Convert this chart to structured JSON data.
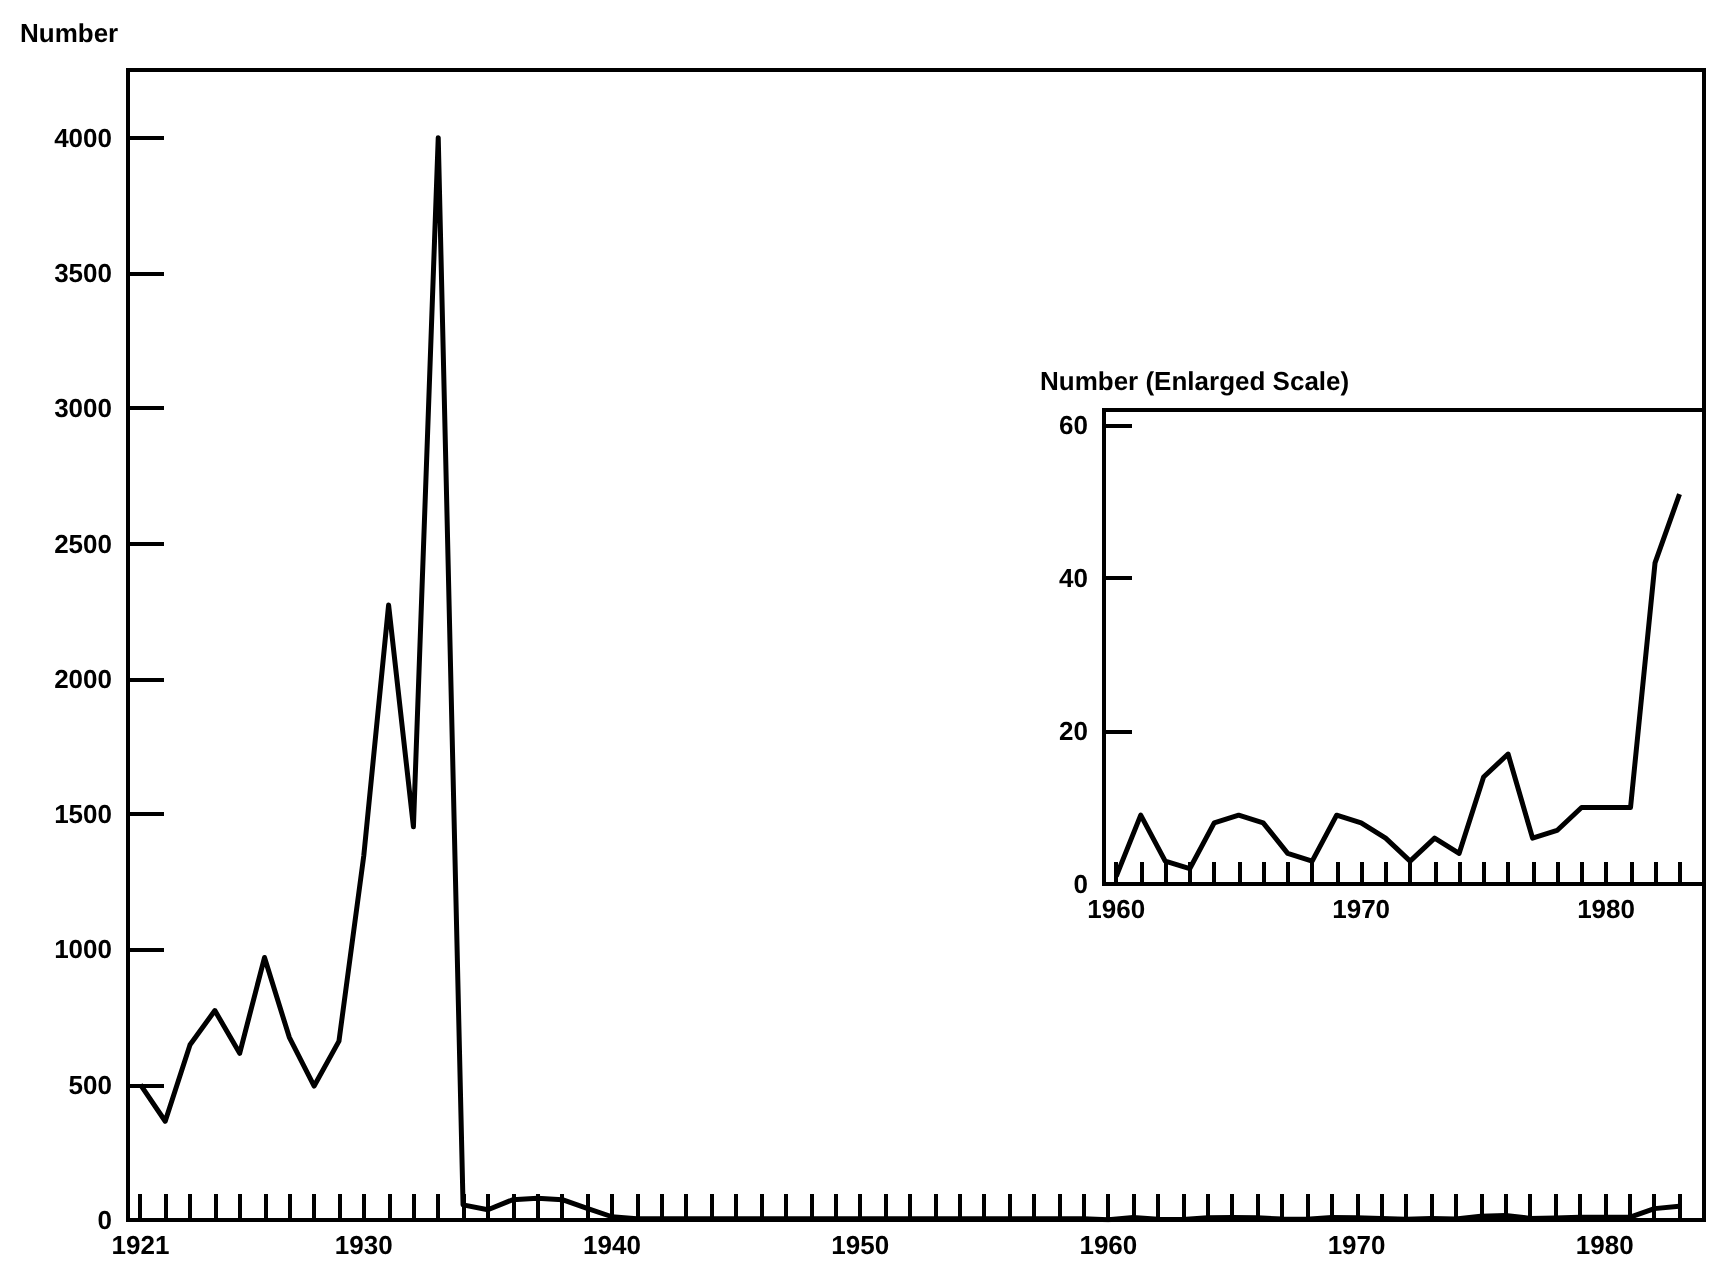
{
  "chart_data": [
    {
      "type": "line",
      "ylabel": "Number",
      "color": "#000000",
      "x": [
        1921,
        1922,
        1923,
        1924,
        1925,
        1926,
        1927,
        1928,
        1929,
        1930,
        1931,
        1932,
        1933,
        1934,
        1935,
        1936,
        1937,
        1938,
        1939,
        1940,
        1941,
        1942,
        1943,
        1944,
        1945,
        1946,
        1947,
        1948,
        1949,
        1950,
        1951,
        1952,
        1953,
        1954,
        1955,
        1956,
        1957,
        1958,
        1959,
        1960,
        1961,
        1962,
        1963,
        1964,
        1965,
        1966,
        1967,
        1968,
        1969,
        1970,
        1971,
        1972,
        1973,
        1974,
        1975,
        1976,
        1977,
        1978,
        1979,
        1980,
        1981,
        1982,
        1983
      ],
      "values": [
        500,
        365,
        648,
        774,
        616,
        970,
        675,
        495,
        661,
        1346,
        2273,
        1453,
        4000,
        56,
        38,
        75,
        80,
        75,
        43,
        12,
        5,
        5,
        5,
        5,
        5,
        5,
        5,
        5,
        5,
        5,
        5,
        5,
        5,
        5,
        5,
        5,
        5,
        5,
        5,
        1,
        9,
        3,
        2,
        8,
        9,
        8,
        4,
        3,
        9,
        8,
        6,
        3,
        6,
        4,
        14,
        17,
        6,
        7,
        10,
        10,
        10,
        42,
        51
      ],
      "xlim": [
        1920.5,
        1984
      ],
      "ylim": [
        0,
        4250
      ],
      "xticks": [
        1921,
        {
          "value": 1922,
          "label": null
        },
        {
          "value": 1923,
          "label": null
        },
        {
          "value": 1924,
          "label": null
        },
        {
          "value": 1925,
          "label": null
        },
        {
          "value": 1926,
          "label": null
        },
        {
          "value": 1927,
          "label": null
        },
        {
          "value": 1928,
          "label": null
        },
        {
          "value": 1929,
          "label": null
        },
        1930,
        {
          "value": 1931,
          "label": null
        },
        {
          "value": 1932,
          "label": null
        },
        {
          "value": 1933,
          "label": null
        },
        {
          "value": 1934,
          "label": null
        },
        {
          "value": 1935,
          "label": null
        },
        {
          "value": 1936,
          "label": null
        },
        {
          "value": 1937,
          "label": null
        },
        {
          "value": 1938,
          "label": null
        },
        {
          "value": 1939,
          "label": null
        },
        1940,
        {
          "value": 1941,
          "label": null
        },
        {
          "value": 1942,
          "label": null
        },
        {
          "value": 1943,
          "label": null
        },
        {
          "value": 1944,
          "label": null
        },
        {
          "value": 1945,
          "label": null
        },
        {
          "value": 1946,
          "label": null
        },
        {
          "value": 1947,
          "label": null
        },
        {
          "value": 1948,
          "label": null
        },
        {
          "value": 1949,
          "label": null
        },
        1950,
        {
          "value": 1951,
          "label": null
        },
        {
          "value": 1952,
          "label": null
        },
        {
          "value": 1953,
          "label": null
        },
        {
          "value": 1954,
          "label": null
        },
        {
          "value": 1955,
          "label": null
        },
        {
          "value": 1956,
          "label": null
        },
        {
          "value": 1957,
          "label": null
        },
        {
          "value": 1958,
          "label": null
        },
        {
          "value": 1959,
          "label": null
        },
        1960,
        {
          "value": 1961,
          "label": null
        },
        {
          "value": 1962,
          "label": null
        },
        {
          "value": 1963,
          "label": null
        },
        {
          "value": 1964,
          "label": null
        },
        {
          "value": 1965,
          "label": null
        },
        {
          "value": 1966,
          "label": null
        },
        {
          "value": 1967,
          "label": null
        },
        {
          "value": 1968,
          "label": null
        },
        {
          "value": 1969,
          "label": null
        },
        1970,
        {
          "value": 1971,
          "label": null
        },
        {
          "value": 1972,
          "label": null
        },
        {
          "value": 1973,
          "label": null
        },
        {
          "value": 1974,
          "label": null
        },
        {
          "value": 1975,
          "label": null
        },
        {
          "value": 1976,
          "label": null
        },
        {
          "value": 1977,
          "label": null
        },
        {
          "value": 1978,
          "label": null
        },
        {
          "value": 1979,
          "label": null
        },
        1980,
        {
          "value": 1981,
          "label": null
        },
        {
          "value": 1982,
          "label": null
        },
        {
          "value": 1983,
          "label": null
        }
      ],
      "yticks": [
        0,
        500,
        1000,
        1500,
        2000,
        2500,
        3000,
        3500,
        4000
      ]
    },
    {
      "type": "line",
      "ylabel": "Number (Enlarged Scale)",
      "color": "#000000",
      "x": [
        1960,
        1961,
        1962,
        1963,
        1964,
        1965,
        1966,
        1967,
        1968,
        1969,
        1970,
        1971,
        1972,
        1973,
        1974,
        1975,
        1976,
        1977,
        1978,
        1979,
        1980,
        1981,
        1982,
        1983
      ],
      "values": [
        1,
        9,
        3,
        2,
        8,
        9,
        8,
        4,
        3,
        9,
        8,
        6,
        3,
        6,
        4,
        14,
        17,
        6,
        7,
        10,
        10,
        10,
        42,
        51
      ],
      "xlim": [
        1959.5,
        1984
      ],
      "ylim": [
        0,
        62
      ],
      "xticks": [
        1960,
        {
          "value": 1961,
          "label": null
        },
        {
          "value": 1962,
          "label": null
        },
        {
          "value": 1963,
          "label": null
        },
        {
          "value": 1964,
          "label": null
        },
        {
          "value": 1965,
          "label": null
        },
        {
          "value": 1966,
          "label": null
        },
        {
          "value": 1967,
          "label": null
        },
        {
          "value": 1968,
          "label": null
        },
        {
          "value": 1969,
          "label": null
        },
        1970,
        {
          "value": 1971,
          "label": null
        },
        {
          "value": 1972,
          "label": null
        },
        {
          "value": 1973,
          "label": null
        },
        {
          "value": 1974,
          "label": null
        },
        {
          "value": 1975,
          "label": null
        },
        {
          "value": 1976,
          "label": null
        },
        {
          "value": 1977,
          "label": null
        },
        {
          "value": 1978,
          "label": null
        },
        {
          "value": 1979,
          "label": null
        },
        1980,
        {
          "value": 1981,
          "label": null
        },
        {
          "value": 1982,
          "label": null
        },
        {
          "value": 1983,
          "label": null
        }
      ],
      "yticks": [
        0,
        20,
        40,
        60
      ]
    }
  ]
}
